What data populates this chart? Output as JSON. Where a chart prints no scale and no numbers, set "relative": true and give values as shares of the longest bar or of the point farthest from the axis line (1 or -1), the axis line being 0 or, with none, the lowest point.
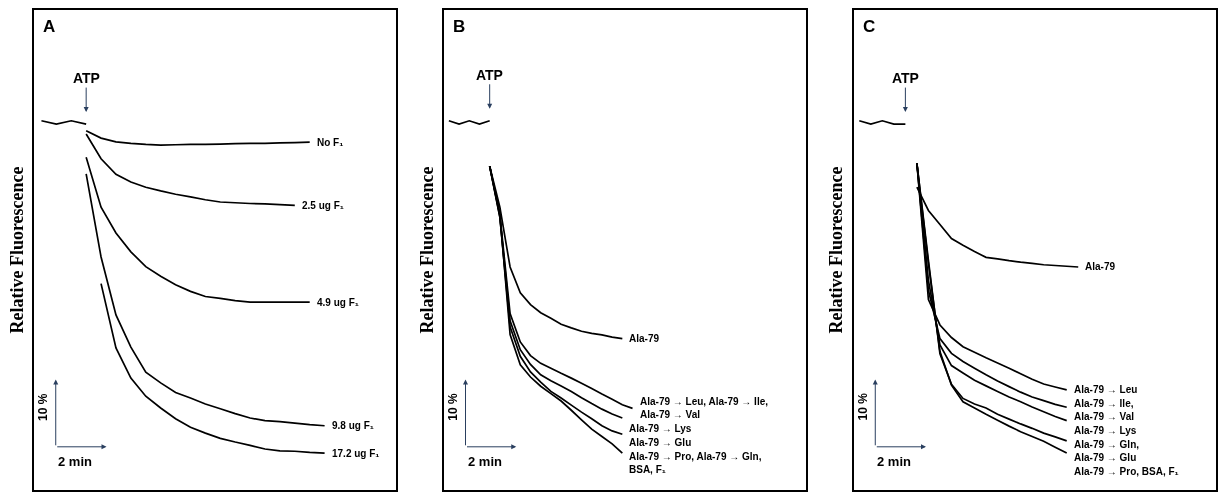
{
  "chart_data": [
    {
      "type": "line",
      "title": "A",
      "ylabel": "Relative Fluorescence",
      "relative": true,
      "legend": false,
      "categories": [
        null,
        null,
        null,
        null,
        null,
        null,
        null,
        null,
        null,
        null,
        null,
        null,
        null,
        null,
        null,
        null,
        null,
        null,
        null,
        null
      ],
      "annotations": [
        "ATP",
        "10 %",
        "2 min"
      ],
      "series": [
        {
          "color": "#000000",
          "values": [
            1.0,
            0.991,
            1.0,
            0.991,
            null,
            null,
            null,
            null,
            null,
            null,
            null,
            null,
            null,
            null,
            null,
            null,
            null,
            null,
            null,
            null
          ]
        },
        {
          "name": "No F₁",
          "color": "#000000",
          "values": [
            null,
            null,
            null,
            0.973,
            0.953,
            0.943,
            0.939,
            0.936,
            0.934,
            0.935,
            0.936,
            0.936,
            0.937,
            0.938,
            0.939,
            0.939,
            0.94,
            0.941,
            0.942,
            null
          ]
        },
        {
          "name": "2.5 ug F₁",
          "color": "#000000",
          "values": [
            null,
            null,
            null,
            0.964,
            0.897,
            0.855,
            0.834,
            0.82,
            0.81,
            0.801,
            0.794,
            0.786,
            0.78,
            0.778,
            0.776,
            0.775,
            0.773,
            0.771,
            null,
            null
          ]
        },
        {
          "name": "4.9 ug F₁",
          "color": "#000000",
          "values": [
            null,
            null,
            null,
            0.901,
            0.766,
            0.696,
            0.645,
            0.605,
            0.579,
            0.556,
            0.538,
            0.524,
            0.519,
            0.513,
            0.509,
            0.509,
            0.509,
            0.509,
            0.509,
            null
          ]
        },
        {
          "name": "9.8 ug F₁",
          "color": "#000000",
          "values": [
            null,
            null,
            null,
            0.856,
            0.631,
            0.474,
            0.387,
            0.319,
            0.29,
            0.264,
            0.249,
            0.233,
            0.22,
            0.207,
            0.195,
            0.188,
            0.185,
            0.181,
            0.177,
            0.174
          ]
        },
        {
          "name": "17.2 ug F₁",
          "color": "#000000",
          "values": [
            null,
            null,
            null,
            null,
            0.559,
            0.385,
            0.303,
            0.254,
            0.222,
            0.193,
            0.17,
            0.154,
            0.14,
            0.13,
            0.121,
            0.111,
            0.106,
            0.105,
            0.102,
            0.1
          ]
        }
      ]
    },
    {
      "type": "line",
      "title": "B",
      "ylabel": "Relative Fluorescence",
      "relative": true,
      "legend": false,
      "categories": [
        null,
        null,
        null,
        null,
        null,
        null,
        null,
        null,
        null,
        null,
        null,
        null,
        null,
        null,
        null,
        null,
        null,
        null,
        null
      ],
      "annotations": [
        "ATP",
        "10 %",
        "2 min"
      ],
      "series": [
        {
          "color": "#000000",
          "values": [
            1.0,
            0.991,
            1.0,
            0.991,
            1.0,
            null,
            null,
            null,
            null,
            null,
            null,
            null,
            null,
            null,
            null,
            null,
            null,
            null,
            null
          ]
        },
        {
          "name": "Ala-79",
          "color": "#000000",
          "values": [
            null,
            null,
            null,
            null,
            0.877,
            0.766,
            0.604,
            0.534,
            0.502,
            0.48,
            0.465,
            0.449,
            0.439,
            0.43,
            0.424,
            0.42,
            0.414,
            0.41,
            null
          ]
        },
        {
          "name": "Ala-79 → Leu, Ala-79 → Ile,\nAla-79 → Val",
          "color": "#000000",
          "values": [
            null,
            null,
            null,
            null,
            0.877,
            0.745,
            0.478,
            0.401,
            0.364,
            0.343,
            0.33,
            0.316,
            0.303,
            0.289,
            0.275,
            0.26,
            0.246,
            0.231,
            0.221
          ]
        },
        {
          "name": "Ala-79 → Lys",
          "color": "#000000",
          "values": [
            null,
            null,
            null,
            null,
            0.877,
            0.739,
            0.458,
            0.38,
            0.34,
            0.312,
            0.296,
            0.282,
            0.267,
            0.25,
            0.234,
            0.219,
            0.206,
            0.195,
            null
          ]
        },
        {
          "name": "Ala-79 → Glu",
          "color": "#000000",
          "values": [
            null,
            null,
            null,
            null,
            0.877,
            0.739,
            0.442,
            0.362,
            0.32,
            0.292,
            0.267,
            0.249,
            0.23,
            0.211,
            0.193,
            0.174,
            0.16,
            0.151,
            null
          ]
        },
        {
          "name": "Ala-79 → Pro, Ala-79 → Gln,\nBSA, F₁",
          "color": "#000000",
          "values": [
            null,
            null,
            null,
            null,
            0.877,
            0.748,
            0.421,
            0.339,
            0.306,
            0.281,
            0.261,
            0.241,
            0.216,
            0.19,
            0.165,
            0.145,
            0.125,
            0.1,
            null
          ]
        }
      ]
    },
    {
      "type": "line",
      "title": "C",
      "ylabel": "Relative Fluorescence",
      "relative": true,
      "legend": false,
      "categories": [
        null,
        null,
        null,
        null,
        null,
        null,
        null,
        null,
        null,
        null,
        null,
        null,
        null,
        null,
        null,
        null,
        null,
        null,
        null,
        null
      ],
      "annotations": [
        "ATP",
        "10 %",
        "2 min"
      ],
      "series": [
        {
          "color": "#000000",
          "values": [
            1.0,
            0.991,
            1.0,
            0.991,
            0.991,
            null,
            null,
            null,
            null,
            null,
            null,
            null,
            null,
            null,
            null,
            null,
            null,
            null,
            null,
            null
          ]
        },
        {
          "name": "Ala-79",
          "color": "#000000",
          "values": [
            null,
            null,
            null,
            null,
            null,
            0.82,
            0.757,
            0.719,
            0.681,
            0.663,
            0.646,
            0.63,
            0.626,
            0.621,
            0.617,
            0.614,
            0.61,
            0.608,
            0.606,
            0.604
          ]
        },
        {
          "name": "Ala-79 → Leu",
          "color": "#000000",
          "values": [
            null,
            null,
            null,
            null,
            null,
            0.885,
            0.516,
            0.447,
            0.413,
            0.388,
            0.373,
            0.358,
            0.344,
            0.33,
            0.315,
            0.3,
            0.287,
            0.279,
            0.271,
            null
          ]
        },
        {
          "name": "Ala-79 → Ile,\nAla-79 → Val",
          "color": "#000000",
          "values": [
            null,
            null,
            null,
            null,
            null,
            0.885,
            0.541,
            0.41,
            0.37,
            0.348,
            0.33,
            0.312,
            0.295,
            0.28,
            0.265,
            0.252,
            0.242,
            0.232,
            0.224,
            null
          ]
        },
        {
          "name": "Ala-79 → Lys",
          "color": "#000000",
          "values": [
            null,
            null,
            null,
            null,
            null,
            0.885,
            0.568,
            0.393,
            0.337,
            0.317,
            0.297,
            0.282,
            0.267,
            0.252,
            0.239,
            0.225,
            0.212,
            0.199,
            0.188,
            null
          ]
        },
        {
          "name": "Ala-79 → Gln,\nAla-79 → Glu",
          "color": "#000000",
          "values": [
            null,
            null,
            null,
            null,
            null,
            0.885,
            0.622,
            0.369,
            0.286,
            0.248,
            0.233,
            0.222,
            0.205,
            0.192,
            0.179,
            0.167,
            0.154,
            0.144,
            0.133,
            null
          ]
        },
        {
          "name": "Ala-79 → Pro, BSA, F₁",
          "color": "#000000",
          "values": [
            null,
            null,
            null,
            null,
            null,
            0.885,
            0.613,
            0.375,
            0.284,
            0.239,
            0.222,
            0.205,
            0.189,
            0.173,
            0.158,
            0.145,
            0.132,
            0.116,
            0.1,
            null
          ]
        }
      ]
    }
  ]
}
